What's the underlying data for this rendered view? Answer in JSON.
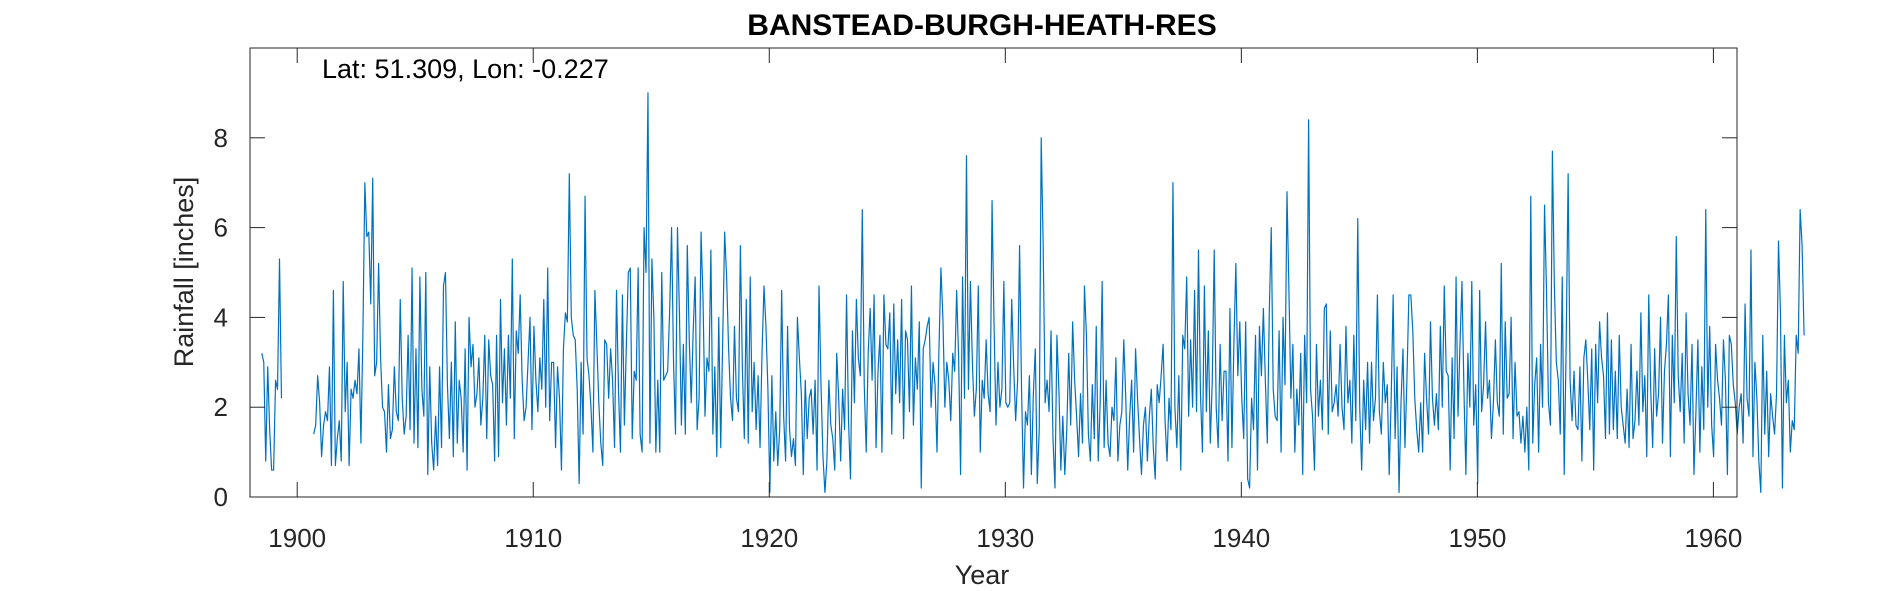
{
  "chart_data": {
    "type": "line",
    "title": "BANSTEAD-BURGH-HEATH-RES",
    "annotation": "Lat: 51.309, Lon: -0.227",
    "xlabel": "Year",
    "ylabel": "Rainfall [inches]",
    "xlim": [
      1898,
      1961
    ],
    "ylim": [
      0,
      10
    ],
    "xticks": [
      "1900",
      "1910",
      "1920",
      "1930",
      "1940",
      "1950",
      "1960"
    ],
    "yticks": [
      "0",
      "2",
      "4",
      "6",
      "8"
    ],
    "grid": false,
    "line_color": "#0072BD",
    "series": [
      {
        "name": "",
        "segments": [
          {
            "start": 1898.5,
            "step": 0.0833,
            "values": [
              3.2,
              3.0,
              0.8,
              2.9,
              1.5,
              0.6,
              0.6,
              2.6,
              2.4,
              5.3,
              2.2
            ]
          },
          {
            "start": 1900.7,
            "step": 0.0833,
            "values": [
              1.4,
              1.6,
              2.7,
              2.1,
              0.9,
              1.6,
              1.9,
              1.7,
              2.9,
              0.7,
              4.6,
              0.7,
              1.3,
              1.7,
              0.8,
              4.8,
              1.9,
              3.0,
              0.7,
              2.4,
              2.2,
              2.6,
              2.3,
              3.3,
              1.2,
              3.6,
              7.0,
              5.8,
              5.9,
              4.3,
              7.1,
              2.7,
              3.0,
              5.2,
              3.1,
              2.0,
              1.9,
              1.0,
              2.5,
              1.3,
              1.5,
              2.9,
              1.9,
              1.7,
              4.4,
              2.2,
              1.4,
              1.8,
              3.6,
              1.5,
              5.1,
              1.2,
              3.3,
              1.1,
              4.9,
              2.4,
              1.8,
              5.0,
              0.5,
              2.9,
              1.2,
              0.6,
              1.8,
              0.7,
              2.9,
              1.1,
              4.7,
              5.0,
              2.5,
              1.3,
              3.0,
              0.9,
              3.9,
              1.2,
              2.6,
              2.2,
              1.0,
              3.3,
              0.6,
              4.0,
              2.9,
              3.4,
              2.0,
              2.3,
              3.1,
              1.6,
              2.2,
              3.6,
              1.3,
              3.5,
              2.7,
              2.5,
              0.8,
              3.6,
              0.9,
              4.4,
              2.1,
              3.3,
              1.6,
              3.6,
              2.2,
              5.3,
              1.3,
              3.7,
              3.2,
              4.5,
              2.6,
              1.7,
              2.0,
              3.0,
              4.0,
              1.5,
              3.8,
              2.6,
              1.9,
              3.1,
              2.4,
              4.4,
              2.0,
              5.1,
              1.7,
              3.0,
              3.0,
              1.1,
              2.9,
              2.2,
              0.6,
              3.3,
              4.1,
              3.9,
              7.2,
              4.0,
              3.6,
              3.5,
              2.4,
              0.3,
              3.0,
              1.4,
              6.7,
              3.1,
              2.7,
              2.0,
              1.0,
              4.6,
              3.4,
              2.1,
              1.2,
              0.7,
              3.5,
              3.4,
              2.2,
              3.3,
              2.6,
              1.1,
              4.6,
              2.4,
              1.0,
              4.5,
              1.6,
              3.4,
              5.0,
              5.1,
              1.3,
              2.8,
              2.6,
              5.1,
              1.4,
              1.0,
              6.0,
              5.0,
              9.0,
              1.2,
              5.3,
              4.0,
              1.0,
              2.6,
              1.0,
              5.0,
              2.6,
              2.7,
              2.8,
              4.1,
              6.0,
              3.0,
              1.4,
              6.0,
              4.1,
              1.6,
              3.4,
              1.4,
              5.6,
              3.5,
              2.1,
              3.7,
              4.9,
              1.5,
              2.2,
              5.9,
              4.4,
              1.8,
              3.1,
              2.8,
              5.5,
              1.4,
              2.9,
              0.9,
              4.0,
              1.1,
              3.5,
              5.9,
              4.9,
              3.3,
              2.2,
              1.7,
              3.8,
              2.2,
              1.9,
              5.6,
              2.9,
              1.3,
              4.4,
              1.2,
              4.9,
              1.9,
              3.0,
              1.5,
              2.7,
              1.1,
              3.2,
              4.7,
              3.8,
              2.4,
              0.1,
              2.7,
              0.8,
              1.9,
              0.7,
              1.5,
              4.6,
              1.8,
              0.8,
              3.8,
              1.5,
              0.9,
              1.3,
              0.7,
              4.0,
              3.1,
              2.3,
              0.5,
              2.6,
              1.3,
              2.2,
              2.4,
              1.4,
              2.6,
              0.6,
              4.7,
              2.5,
              0.9,
              0.1,
              0.8,
              2.6,
              1.6,
              1.3,
              0.6,
              3.2,
              2.2,
              0.8,
              2.4,
              1.5,
              4.5,
              1.7,
              0.4,
              3.7,
              2.1,
              4.4,
              3.1,
              2.7,
              6.4,
              2.5,
              1.0,
              3.2,
              4.2,
              2.6,
              4.5,
              1.1,
              2.8,
              3.6,
              1.0,
              4.5,
              3.4,
              3.3,
              4.1,
              1.4,
              4.3,
              2.3,
              3.5,
              2.1,
              4.4,
              1.3,
              3.7,
              3.5,
              1.9,
              4.7,
              1.6,
              3.1,
              2.4,
              3.9,
              0.2,
              3.3,
              3.5,
              3.8,
              4.0,
              2.0,
              3.0,
              2.5,
              1.0,
              3.3,
              5.1,
              4.0,
              2.0,
              3.0,
              2.6,
              1.7,
              3.2,
              2.8,
              4.6,
              3.1,
              0.5,
              4.9,
              2.2,
              7.6,
              2.4,
              4.8,
              3.0,
              1.8,
              2.4,
              4.7,
              1.0,
              2.6,
              2.2,
              3.5,
              2.3,
              1.9,
              6.6,
              3.9,
              1.6,
              3.0,
              2.0,
              2.4,
              4.8,
              2.1,
              2.0,
              2.1,
              4.4,
              2.9,
              1.7,
              2.6,
              5.6,
              2.4,
              0.2,
              1.9,
              1.6,
              2.7,
              0.5,
              2.3,
              3.3,
              0.3,
              1.5,
              8.0,
              5.6,
              2.1,
              2.6,
              1.9,
              3.7,
              1.3,
              0.2,
              3.6,
              2.4,
              0.6,
              1.8,
              0.5,
              1.5,
              3.2,
              1.6,
              3.9,
              2.6,
              1.8,
              0.9,
              2.3,
              1.2,
              4.7,
              3.6,
              1.4,
              0.8,
              2.5,
              1.3,
              3.8,
              0.8,
              2.1,
              4.8,
              1.1,
              2.6,
              1.2,
              0.9,
              2.0,
              1.7,
              3.1,
              0.8,
              1.6,
              1.9,
              3.5,
              2.2,
              0.6,
              1.8,
              2.6,
              1.0,
              3.3,
              2.2,
              1.3,
              0.5,
              1.6,
              2.0,
              0.8,
              1.8,
              2.4,
              1.1,
              0.4,
              2.5,
              2.1,
              2.7,
              3.4,
              1.7,
              0.8,
              2.2,
              1.5,
              7.0,
              2.0,
              1.1,
              2.7,
              0.6,
              3.6,
              3.3,
              4.9,
              1.8,
              3.5,
              2.0,
              4.6,
              1.9,
              5.5,
              2.3,
              1.0,
              4.7,
              1.9,
              3.7,
              1.2,
              2.6,
              5.5,
              2.0,
              1.1,
              3.4,
              1.7,
              2.8,
              2.8,
              0.8,
              4.2,
              1.1,
              3.4,
              5.2,
              2.7,
              3.9,
              2.2,
              1.3,
              3.9,
              0.4,
              0.2,
              2.2,
              1.5,
              3.6,
              0.6,
              3.8,
              2.7,
              4.2,
              2.6,
              1.2,
              4.1,
              6.0,
              2.4,
              1.8,
              1.7,
              3.7,
              1.0,
              4.0,
              2.5,
              6.8,
              4.6,
              2.2,
              3.4,
              1.0,
              2.4,
              1.6,
              3.2,
              0.5,
              3.6,
              2.1,
              8.4,
              2.4,
              1.8,
              0.6,
              3.4,
              1.8,
              2.6,
              1.5,
              4.2,
              4.3,
              1.4,
              3.7,
              1.9,
              2.1,
              2.5,
              1.8,
              3.4,
              2.0,
              1.5,
              3.8,
              2.1,
              2.6,
              1.2,
              3.6,
              1.7,
              6.2,
              2.0,
              0.6,
              2.6,
              1.5,
              3.0,
              1.2,
              3.0,
              1.7,
              2.2,
              4.5,
              1.9,
              1.4,
              3.0,
              2.1,
              2.5,
              0.5,
              2.2,
              4.5,
              1.3,
              2.9,
              0.1,
              2.1,
              3.3,
              1.1,
              2.6,
              4.5,
              4.5,
              3.7,
              2.2,
              1.5,
              1.0,
              2.1,
              1.0,
              3.2,
              2.2,
              1.4,
              3.9,
              2.2,
              1.6,
              2.3,
              1.5,
              3.8,
              2.0,
              4.7,
              2.8,
              2.7,
              0.6,
              3.1,
              1.3,
              4.9,
              1.8,
              3.4,
              4.8,
              2.4,
              0.5,
              3.2,
              2.0,
              4.8,
              1.6,
              2.5,
              0.3,
              4.6,
              1.9,
              2.5,
              3.9,
              2.2,
              2.6,
              1.3,
              2.1,
              3.5,
              2.1,
              1.8,
              5.2,
              1.4,
              3.9,
              2.2,
              2.3,
              4.0,
              1.3,
              3.0,
              1.8,
              1.9,
              1.2,
              1.8,
              1.0,
              2.0,
              0.6,
              6.7,
              1.2,
              2.5,
              3.1,
              1.0,
              3.4,
              2.0,
              6.5,
              4.6,
              2.1,
              1.6,
              7.7,
              4.7,
              3.0,
              2.6,
              1.4,
              4.9,
              0.5,
              3.4,
              7.2,
              2.6,
              1.7,
              2.8,
              1.6,
              1.5,
              2.9,
              0.8,
              3.1,
              3.5,
              2.6,
              1.5,
              3.3,
              0.6,
              3.4,
              2.1,
              3.9,
              3.1,
              2.7,
              1.3,
              4.1,
              1.4,
              3.5,
              1.5,
              2.8,
              1.3,
              3.6,
              2.0,
              1.6,
              1.2,
              2.4,
              1.1,
              3.4,
              1.3,
              1.7,
              2.8,
              1.6,
              4.1,
              1.9,
              2.7,
              0.9,
              4.5,
              2.4,
              1.1,
              3.3,
              1.8,
              2.3,
              4.0,
              1.2,
              2.8,
              3.4,
              4.5,
              0.9,
              3.6,
              2.1,
              5.8,
              2.7,
              1.9,
              3.2,
              1.2,
              4.1,
              2.3,
              1.6,
              3.4,
              0.5,
              1.9,
              3.5,
              1.0,
              2.9,
              1.5,
              6.4,
              2.0,
              3.8,
              1.6,
              0.9,
              3.4,
              2.6,
              2.2,
              1.6,
              3.5,
              2.6,
              0.5,
              3.6,
              3.4,
              2.5,
              2.1,
              1.4,
              2.0,
              2.3,
              1.2,
              4.3,
              2.2,
              1.8,
              5.5,
              0.9,
              3.0,
              2.2,
              0.8,
              0.1,
              3.6,
              1.4,
              2.8,
              0.9,
              2.3,
              1.8,
              1.4,
              2.3,
              5.7,
              4.1,
              0.2,
              3.6,
              2.1,
              2.6,
              1.0,
              1.7,
              1.5,
              3.6,
              3.2,
              6.4,
              5.6,
              3.6
            ]
          }
        ]
      }
    ]
  }
}
